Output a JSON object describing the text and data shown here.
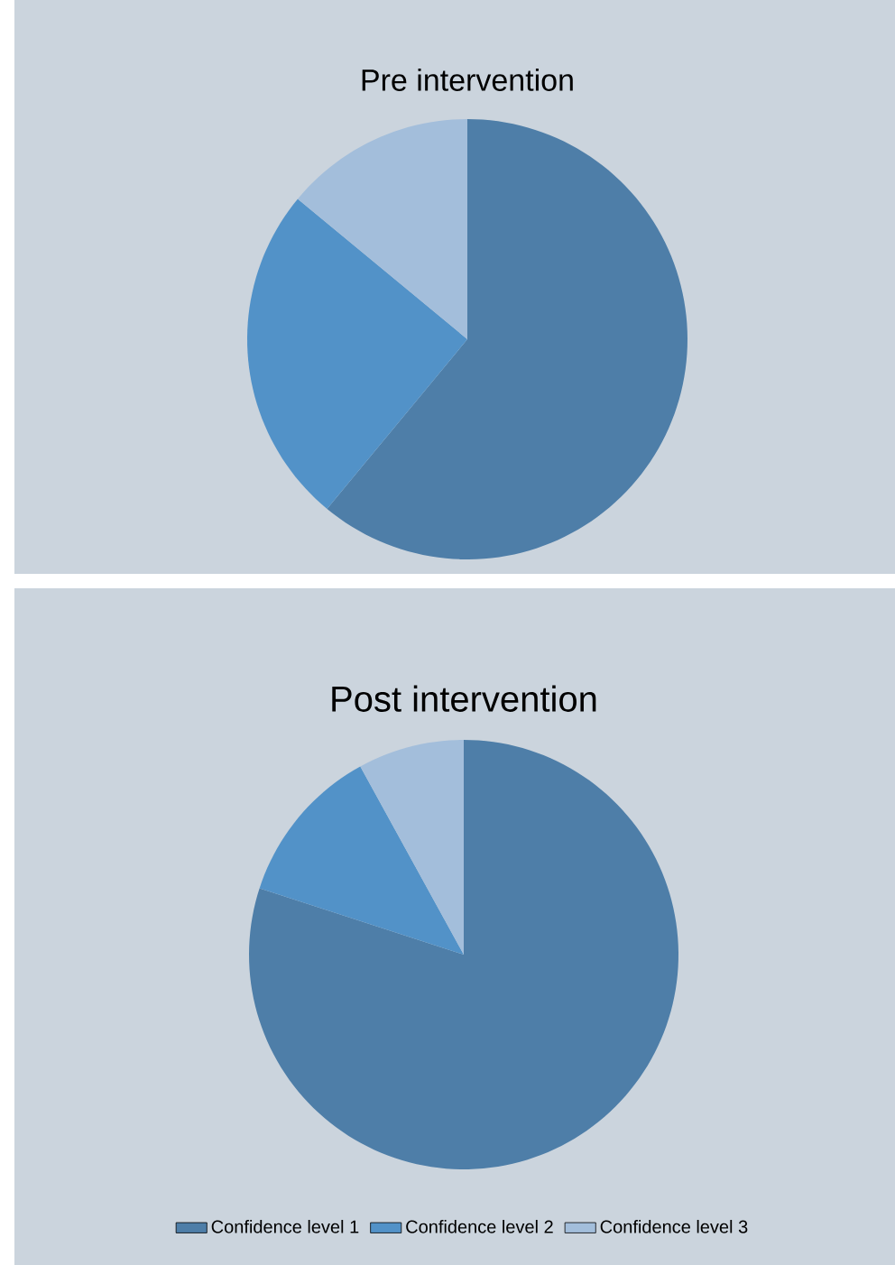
{
  "chart_data": [
    {
      "type": "pie",
      "title": "Pre intervention",
      "categories": [
        null,
        null,
        null
      ],
      "values": [
        61,
        25,
        14
      ],
      "colors": [
        "#4e7ea8",
        "#5292c8",
        "#a3bedb"
      ],
      "legend": false
    },
    {
      "type": "pie",
      "title": "Post intervention",
      "categories": [
        "Confidence level 1",
        "Confidence level 2",
        "Confidence level 3"
      ],
      "values": [
        80,
        12,
        8
      ],
      "colors": [
        "#4e7ea8",
        "#5292c8",
        "#a3bedb"
      ],
      "legend": "bottom"
    }
  ]
}
